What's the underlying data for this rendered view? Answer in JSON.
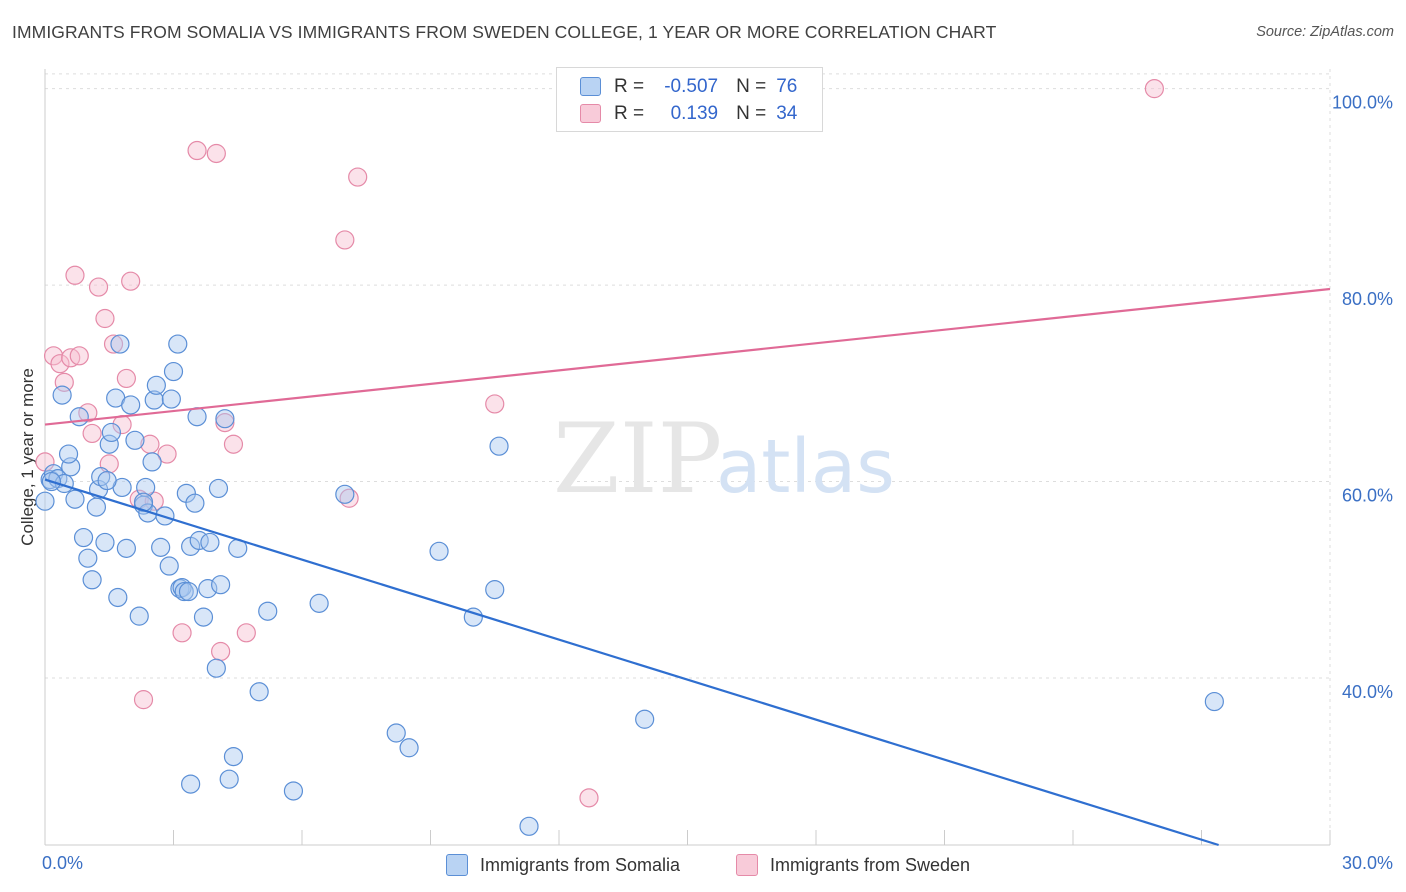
{
  "header": {
    "title": "IMMIGRANTS FROM SOMALIA VS IMMIGRANTS FROM SWEDEN COLLEGE, 1 YEAR OR MORE CORRELATION CHART",
    "source": "Source: ZipAtlas.com"
  },
  "legend": {
    "somalia": {
      "r_label": "R =",
      "r_value": "-0.507",
      "n_label": "N =",
      "n_value": "76"
    },
    "sweden": {
      "r_label": "R =",
      "r_value": "0.139",
      "n_label": "N =",
      "n_value": "34"
    }
  },
  "watermark": {
    "part1": "ZIP",
    "part2": "atlas"
  },
  "colors": {
    "somalia_fill": "#a9c8f0",
    "somalia_stroke": "#5b8fd6",
    "somalia_line": "#2f6fd0",
    "sweden_fill": "#f6bfd0",
    "sweden_stroke": "#e58aa8",
    "sweden_line": "#e06a96",
    "tick_label": "#3a6fc4",
    "grid": "#dddddd"
  },
  "chart_data": {
    "type": "scatter",
    "title": "IMMIGRANTS FROM SOMALIA VS IMMIGRANTS FROM SWEDEN COLLEGE, 1 YEAR OR MORE CORRELATION CHART",
    "xlabel": "",
    "ylabel": "College, 1 year or more",
    "xlim": [
      0,
      30
    ],
    "ylim": [
      23,
      102
    ],
    "x_tick_labels": [
      "0.0%",
      "30.0%"
    ],
    "y_ticks": [
      40,
      60,
      80,
      100
    ],
    "y_tick_labels": [
      "40.0%",
      "60.0%",
      "80.0%",
      "100.0%"
    ],
    "grid": true,
    "legend_position": "top-center",
    "series": [
      {
        "name": "Immigrants from Somalia",
        "r": -0.507,
        "n": 76,
        "trend": {
          "x": [
            0,
            27.4
          ],
          "y": [
            60.2,
            23
          ]
        },
        "points": [
          [
            0.0,
            58.0
          ],
          [
            0.12,
            60.2
          ],
          [
            0.2,
            60.8
          ],
          [
            0.3,
            60.3
          ],
          [
            0.4,
            68.8
          ],
          [
            0.45,
            59.8
          ],
          [
            0.6,
            61.5
          ],
          [
            0.55,
            62.8
          ],
          [
            0.7,
            58.2
          ],
          [
            0.8,
            66.6
          ],
          [
            0.9,
            54.3
          ],
          [
            1.0,
            52.2
          ],
          [
            1.1,
            50.0
          ],
          [
            1.2,
            57.4
          ],
          [
            1.25,
            59.2
          ],
          [
            1.3,
            60.5
          ],
          [
            1.4,
            53.8
          ],
          [
            1.5,
            63.8
          ],
          [
            1.55,
            65.0
          ],
          [
            1.65,
            68.5
          ],
          [
            1.7,
            48.2
          ],
          [
            1.75,
            74.0
          ],
          [
            1.8,
            59.4
          ],
          [
            1.9,
            53.2
          ],
          [
            2.0,
            67.8
          ],
          [
            2.1,
            64.2
          ],
          [
            2.2,
            46.3
          ],
          [
            2.3,
            57.6
          ],
          [
            2.35,
            59.4
          ],
          [
            2.4,
            56.8
          ],
          [
            2.5,
            62.0
          ],
          [
            2.55,
            68.3
          ],
          [
            2.6,
            69.8
          ],
          [
            2.7,
            53.3
          ],
          [
            2.8,
            56.5
          ],
          [
            2.9,
            51.4
          ],
          [
            2.95,
            68.4
          ],
          [
            3.0,
            71.2
          ],
          [
            3.1,
            74.0
          ],
          [
            3.15,
            49.1
          ],
          [
            3.2,
            49.2
          ],
          [
            3.25,
            48.8
          ],
          [
            3.3,
            58.8
          ],
          [
            3.4,
            53.4
          ],
          [
            3.5,
            57.8
          ],
          [
            3.6,
            54.0
          ],
          [
            3.55,
            66.6
          ],
          [
            3.7,
            46.2
          ],
          [
            3.8,
            49.1
          ],
          [
            3.85,
            53.8
          ],
          [
            4.0,
            41.0
          ],
          [
            4.05,
            59.3
          ],
          [
            4.1,
            49.5
          ],
          [
            4.2,
            66.4
          ],
          [
            4.3,
            29.7
          ],
          [
            4.4,
            32.0
          ],
          [
            4.5,
            53.2
          ],
          [
            5.0,
            38.6
          ],
          [
            5.2,
            46.8
          ],
          [
            5.8,
            28.5
          ],
          [
            6.4,
            47.6
          ],
          [
            7.0,
            58.7
          ],
          [
            8.2,
            34.4
          ],
          [
            8.5,
            32.9
          ],
          [
            9.2,
            52.9
          ],
          [
            10.0,
            46.2
          ],
          [
            10.5,
            49.0
          ],
          [
            10.6,
            63.6
          ],
          [
            11.3,
            24.9
          ],
          [
            14.0,
            35.8
          ],
          [
            27.3,
            37.6
          ],
          [
            3.4,
            29.2
          ],
          [
            0.15,
            60.0
          ],
          [
            1.45,
            60.1
          ],
          [
            2.3,
            57.9
          ],
          [
            3.35,
            48.8
          ]
        ]
      },
      {
        "name": "Immigrants from Sweden",
        "r": 0.139,
        "n": 34,
        "trend": {
          "x": [
            0,
            30
          ],
          "y": [
            65.8,
            79.6
          ]
        },
        "points": [
          [
            0.0,
            62.0
          ],
          [
            0.2,
            72.8
          ],
          [
            0.35,
            72.0
          ],
          [
            0.45,
            70.1
          ],
          [
            0.6,
            72.6
          ],
          [
            0.7,
            81.0
          ],
          [
            0.8,
            72.8
          ],
          [
            1.0,
            67.0
          ],
          [
            1.1,
            64.9
          ],
          [
            1.25,
            79.8
          ],
          [
            1.4,
            76.6
          ],
          [
            1.5,
            61.8
          ],
          [
            1.6,
            74.0
          ],
          [
            1.8,
            65.8
          ],
          [
            1.9,
            70.5
          ],
          [
            2.0,
            80.4
          ],
          [
            2.2,
            58.2
          ],
          [
            2.3,
            37.8
          ],
          [
            2.45,
            63.8
          ],
          [
            2.55,
            58.0
          ],
          [
            2.85,
            62.8
          ],
          [
            3.2,
            44.6
          ],
          [
            3.55,
            93.7
          ],
          [
            4.0,
            93.4
          ],
          [
            4.1,
            42.7
          ],
          [
            4.2,
            66.0
          ],
          [
            4.4,
            63.8
          ],
          [
            4.7,
            44.6
          ],
          [
            7.0,
            84.6
          ],
          [
            7.1,
            58.3
          ],
          [
            7.3,
            91.0
          ],
          [
            10.5,
            67.9
          ],
          [
            12.7,
            27.8
          ],
          [
            25.9,
            100.0
          ]
        ]
      }
    ]
  }
}
